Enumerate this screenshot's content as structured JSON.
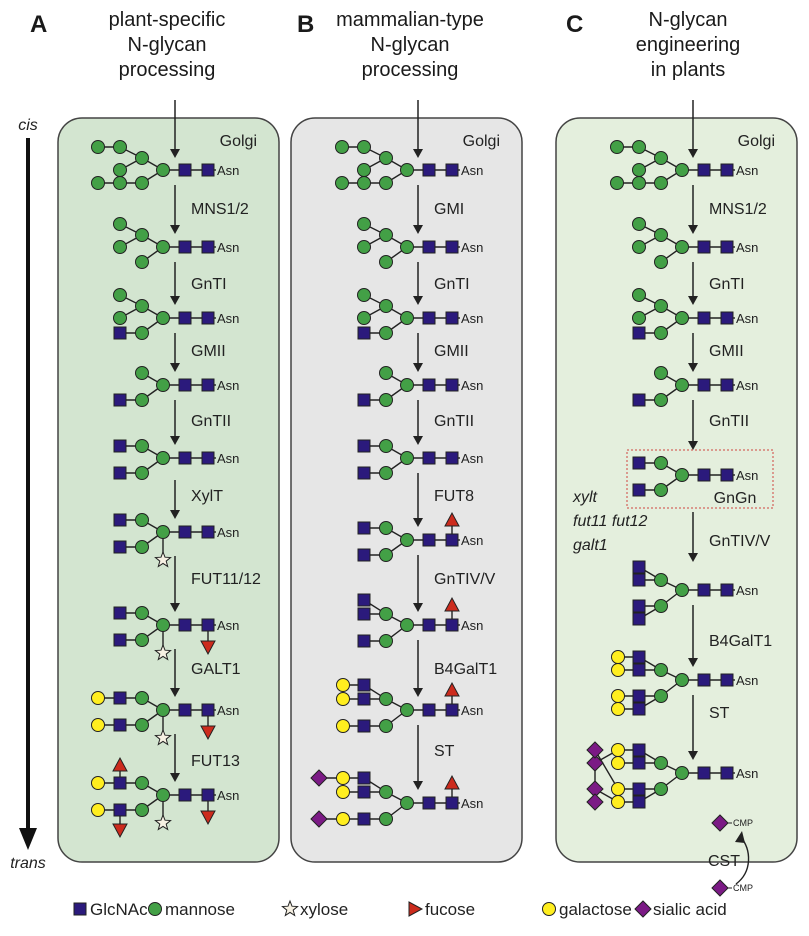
{
  "panels": [
    {
      "letter": "A",
      "title": [
        "plant-specific",
        "N-glycan",
        "processing"
      ],
      "compartment": "Golgi",
      "box_color": "#d3e5d0",
      "enzymes": [
        {
          "label": "MNS1/2"
        },
        {
          "label": "GnTI"
        },
        {
          "label": "GMII"
        },
        {
          "label": "GnTII"
        },
        {
          "label": "XylT"
        },
        {
          "label": "FUT11/12"
        },
        {
          "label": "GALT1"
        },
        {
          "label": "FUT13"
        }
      ]
    },
    {
      "letter": "B",
      "title": [
        "mammalian-type",
        "N-glycan",
        "processing"
      ],
      "compartment": "Golgi",
      "box_color": "#e6e6e6",
      "enzymes": [
        {
          "label": "GMI"
        },
        {
          "label": "GnTI"
        },
        {
          "label": "GMII"
        },
        {
          "label": "GnTII"
        },
        {
          "label": "FUT8"
        },
        {
          "label": "GnTIV/V"
        },
        {
          "label": "B4GalT1"
        },
        {
          "label": "ST"
        }
      ]
    },
    {
      "letter": "C",
      "title": [
        "N-glycan",
        "engineering",
        "in plants"
      ],
      "compartment": "Golgi",
      "box_color": "#e4efdd",
      "enzymes": [
        {
          "label": "MNS1/2"
        },
        {
          "label": "GnTI"
        },
        {
          "label": "GMII"
        },
        {
          "label": "GnTII"
        },
        {
          "label": "GnTIV/V",
          "highlight": true
        },
        {
          "label": "B4GalT1",
          "highlight": true
        },
        {
          "label": "ST",
          "highlight": true
        }
      ],
      "gngn_label": "GnGn",
      "knockouts": [
        "xylt",
        "fut11 fut12",
        "galt1"
      ],
      "cst_label": "CST",
      "cmp_label": "CMP"
    }
  ],
  "asn_label": "Asn",
  "axis": {
    "cis": "cis",
    "trans": "trans"
  },
  "legend": [
    {
      "label": "GlcNAc",
      "icon": "square"
    },
    {
      "label": "mannose",
      "icon": "circle"
    },
    {
      "label": "xylose",
      "icon": "star"
    },
    {
      "label": "fucose",
      "icon": "triangle"
    },
    {
      "label": "galactose",
      "icon": "circle"
    },
    {
      "label": "sialic acid",
      "icon": "diamond"
    }
  ],
  "colors": {
    "GlcNAc": "#2b1a7c",
    "mannose": "#43a046",
    "xylose": "#f7f1e3",
    "fucose": "#cc2b1d",
    "galactose": "#ffee1f",
    "sialic acid": "#7b1a85",
    "highlight_text": "#c2303b",
    "gngn_box": "#d0463e"
  }
}
